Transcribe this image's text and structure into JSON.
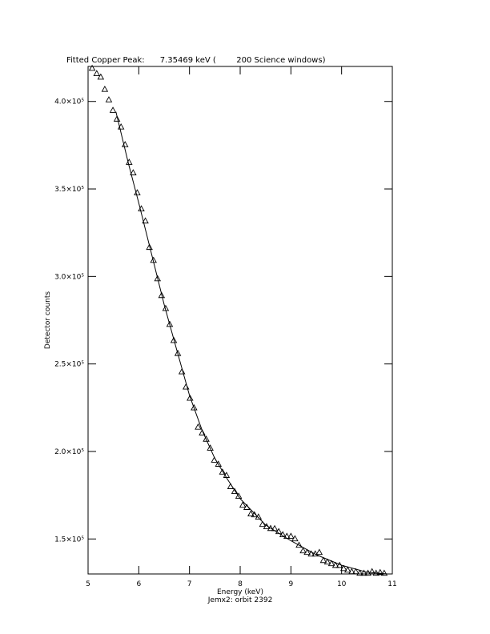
{
  "chart_data": {
    "type": "scatter",
    "title": "Fitted Copper Peak:      7.35469 keV (        200 Science windows)",
    "x_label": "Energy (keV)",
    "subtitle": "Jemx2: orbit 2392",
    "y_label": "Detector counts",
    "color": "#000000",
    "xlim": [
      5,
      11
    ],
    "xticks": [
      5,
      6,
      7,
      8,
      9,
      10,
      11
    ],
    "ylim": [
      130000,
      420000
    ],
    "yticks": [
      {
        "value": 150000,
        "label": "1.5×10⁵"
      },
      {
        "value": 200000,
        "label": "2.0×10⁵"
      },
      {
        "value": 250000,
        "label": "2.5×10⁵"
      },
      {
        "value": 300000,
        "label": "3.0×10⁵"
      },
      {
        "value": 350000,
        "label": "3.5×10⁵"
      },
      {
        "value": 400000,
        "label": "4.0×10⁵"
      }
    ],
    "series": [
      {
        "marker": "triangle",
        "x": [
          5.08,
          5.17,
          5.25,
          5.33,
          5.41,
          5.49,
          5.57,
          5.65,
          5.73,
          5.81,
          5.89,
          5.97,
          6.05,
          6.13,
          6.21,
          6.29,
          6.37,
          6.45,
          6.53,
          6.61,
          6.69,
          6.77,
          6.85,
          6.93,
          7.01,
          7.09,
          7.17,
          7.25,
          7.33,
          7.41,
          7.49,
          7.57,
          7.65,
          7.73,
          7.81,
          7.89,
          7.97,
          8.05,
          8.13,
          8.21,
          8.28,
          8.36,
          8.44,
          8.52,
          8.6,
          8.68,
          8.76,
          8.84,
          8.92,
          9.0,
          9.08,
          9.16,
          9.24,
          9.32,
          9.4,
          9.48,
          9.56,
          9.64,
          9.72,
          9.8,
          9.88,
          9.96,
          10.04,
          10.12,
          10.2,
          10.28,
          10.36,
          10.44,
          10.52,
          10.6,
          10.68,
          10.76,
          10.84
        ],
        "values": [
          419000,
          416000,
          414000,
          407000,
          401000,
          395000,
          390000,
          385500,
          375400,
          365300,
          359300,
          347900,
          338700,
          331800,
          316700,
          309300,
          298800,
          289200,
          281800,
          272700,
          263500,
          256100,
          245600,
          236900,
          230500,
          225000,
          214000,
          210700,
          207100,
          202000,
          195100,
          192800,
          188300,
          186400,
          180000,
          177200,
          174500,
          169400,
          168100,
          164400,
          163900,
          162600,
          158400,
          157100,
          156100,
          156000,
          154300,
          152500,
          151600,
          151600,
          150200,
          146500,
          143300,
          142400,
          141500,
          141500,
          142400,
          137800,
          136900,
          136000,
          135000,
          135000,
          133200,
          132300,
          131400,
          131400,
          130500,
          130500,
          130500,
          131400,
          130500,
          130900,
          130500
        ]
      },
      {
        "marker": "line",
        "x": [
          5.55,
          5.8,
          6.0,
          6.25,
          6.5,
          6.75,
          7.0,
          7.25,
          7.5,
          7.75,
          8.0,
          8.5,
          9.0,
          9.5,
          10.0,
          10.5,
          10.9
        ],
        "values": [
          394000,
          364000,
          342000,
          313000,
          284000,
          258000,
          232000,
          212000,
          196000,
          184000,
          173000,
          158000,
          149000,
          141000,
          135000,
          131000,
          130000
        ]
      }
    ]
  }
}
